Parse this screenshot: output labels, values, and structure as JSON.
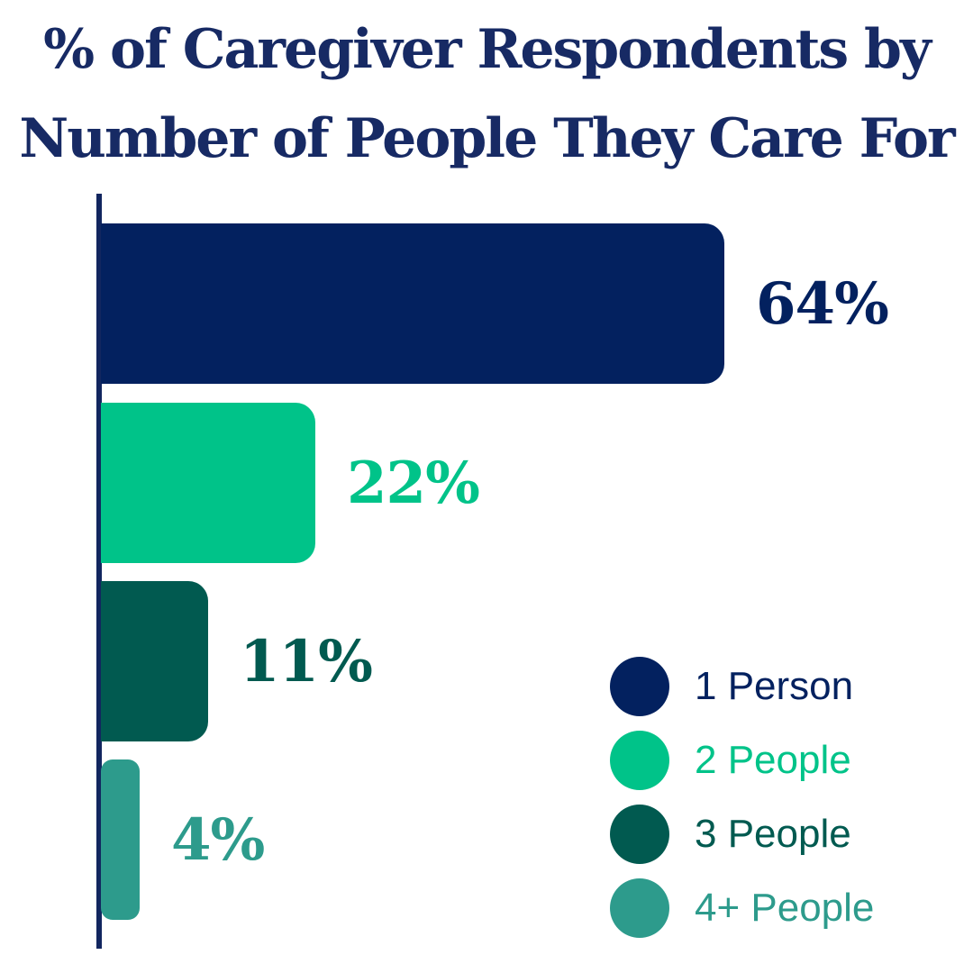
{
  "title": {
    "line1": "% of Caregiver Respondents by",
    "line2": "Number of People They Care For"
  },
  "chart_data": {
    "type": "bar",
    "orientation": "horizontal",
    "title": "% of Caregiver Respondents by Number of People They Care For",
    "categories": [
      "1 Person",
      "2 People",
      "3 People",
      "4+ People"
    ],
    "values": [
      64,
      22,
      11,
      4
    ],
    "value_labels": [
      "64%",
      "22%",
      "11%",
      "4%"
    ],
    "colors": [
      "#03215F",
      "#00C389",
      "#015A50",
      "#2D9B8C"
    ],
    "xlabel": "",
    "ylabel": "",
    "xlim": [
      0,
      100
    ],
    "grid": false,
    "legend_position": "bottom-right"
  },
  "legend": {
    "items": [
      {
        "label": "1 Person",
        "color": "#03215F",
        "swatch": "circle-icon"
      },
      {
        "label": "2 People",
        "color": "#00C389",
        "swatch": "circle-icon"
      },
      {
        "label": "3 People",
        "color": "#015A50",
        "swatch": "circle-icon"
      },
      {
        "label": "4+ People",
        "color": "#2D9B8C",
        "swatch": "circle-icon"
      }
    ]
  },
  "colors": {
    "background": "#FFFFFF",
    "title": "#172A64",
    "axis": "#12265F"
  }
}
